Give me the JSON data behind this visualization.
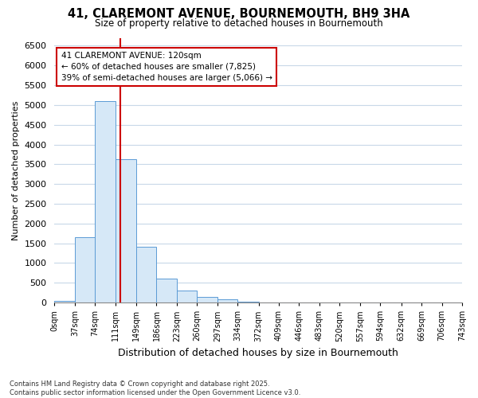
{
  "title_line1": "41, CLAREMONT AVENUE, BOURNEMOUTH, BH9 3HA",
  "title_line2": "Size of property relative to detached houses in Bournemouth",
  "xlabel": "Distribution of detached houses by size in Bournemouth",
  "ylabel": "Number of detached properties",
  "bar_edges": [
    0,
    37,
    74,
    111,
    149,
    186,
    223,
    260,
    297,
    334,
    372,
    409,
    446,
    483,
    520,
    557,
    594,
    632,
    669,
    706,
    743
  ],
  "bar_heights": [
    50,
    1650,
    5100,
    3620,
    1420,
    610,
    300,
    140,
    80,
    30,
    0,
    0,
    0,
    0,
    0,
    0,
    0,
    0,
    0,
    0
  ],
  "bar_color": "#d6e8f7",
  "bar_edge_color": "#5b9bd5",
  "property_size": 120,
  "annotation_text": "41 CLAREMONT AVENUE: 120sqm\n← 60% of detached houses are smaller (7,825)\n39% of semi-detached houses are larger (5,066) →",
  "annotation_box_color": "#ffffff",
  "annotation_box_edge_color": "#cc0000",
  "vline_color": "#cc0000",
  "ylim": [
    0,
    6700
  ],
  "yticks": [
    0,
    500,
    1000,
    1500,
    2000,
    2500,
    3000,
    3500,
    4000,
    4500,
    5000,
    5500,
    6000,
    6500
  ],
  "tick_label_suffix": "sqm",
  "footer_line1": "Contains HM Land Registry data © Crown copyright and database right 2025.",
  "footer_line2": "Contains public sector information licensed under the Open Government Licence v3.0.",
  "background_color": "#ffffff",
  "grid_color": "#c8d8e8"
}
